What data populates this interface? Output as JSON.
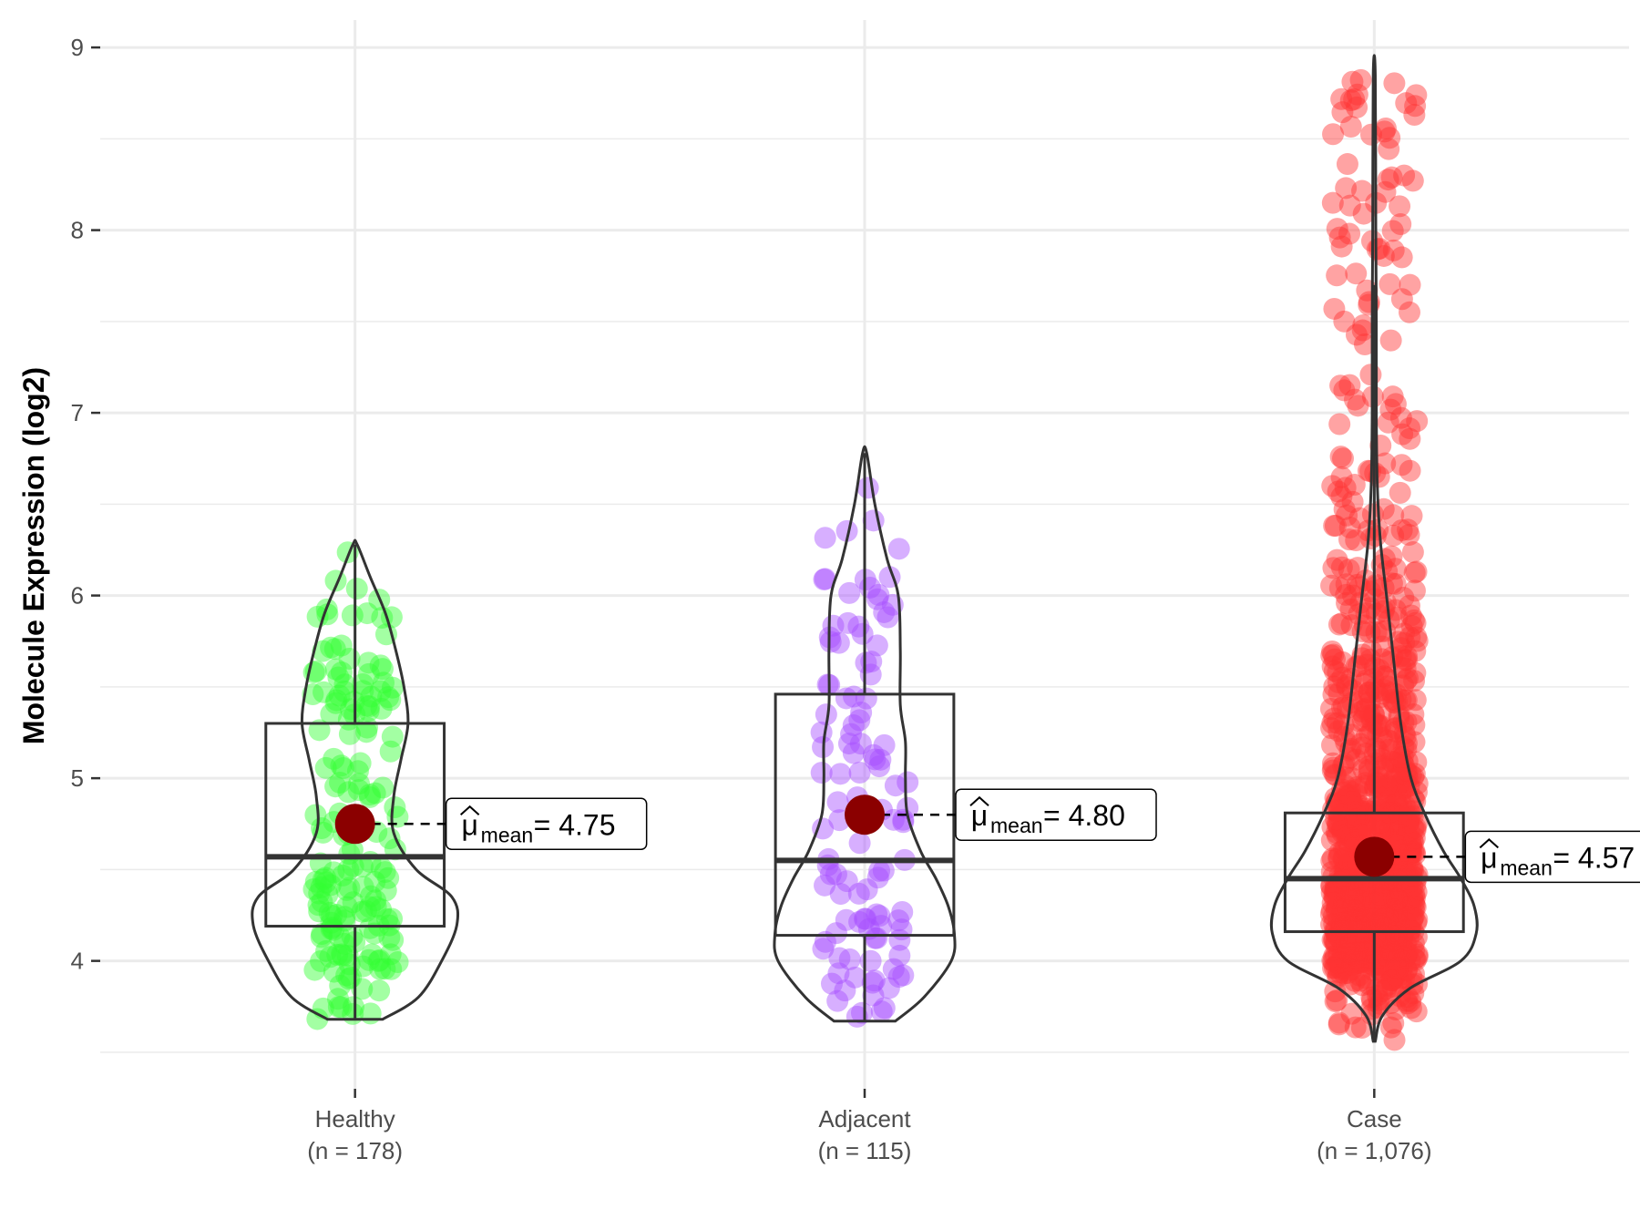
{
  "chart_data": {
    "type": "violin",
    "title": "",
    "xlabel": "",
    "ylabel": "Molecule Expression (log2)",
    "ylim": [
      3.3,
      9.15
    ],
    "yticks": [
      4,
      5,
      6,
      7,
      8,
      9
    ],
    "grid": true,
    "mean_label_template": "= ",
    "mean_symbol": "μ",
    "mean_subscript": "mean",
    "colors": {
      "grid": "#ebebeb",
      "outline": "#333333",
      "mean_point": "#8b0000",
      "axis_text": "#4d4d4d"
    },
    "groups": [
      {
        "name": "Healthy",
        "n_label": "(n = 178)",
        "n": 178,
        "color": "#33ff33",
        "mean": 4.75,
        "mean_label": "4.75",
        "box": {
          "q1": 4.19,
          "median": 4.57,
          "q3": 5.3,
          "whisker_low": 3.68,
          "whisker_high": 6.28
        },
        "violin": {
          "min": 3.68,
          "max": 6.28,
          "ys": [
            3.68,
            3.8,
            4.0,
            4.2,
            4.35,
            4.5,
            4.7,
            4.9,
            5.1,
            5.3,
            5.5,
            5.7,
            5.9,
            6.1,
            6.28
          ],
          "widths": [
            0.27,
            0.62,
            0.85,
            1.0,
            0.95,
            0.6,
            0.38,
            0.38,
            0.45,
            0.52,
            0.48,
            0.4,
            0.3,
            0.15,
            0.02
          ]
        },
        "range": [
          3.68,
          6.3
        ]
      },
      {
        "name": "Adjacent",
        "n_label": "(n = 115)",
        "n": 115,
        "color": "#a64dff",
        "mean": 4.8,
        "mean_label": "4.80",
        "box": {
          "q1": 4.14,
          "median": 4.55,
          "q3": 5.46,
          "whisker_low": 3.67,
          "whisker_high": 6.78
        },
        "violin": {
          "min": 3.67,
          "max": 6.78,
          "ys": [
            3.67,
            3.8,
            4.0,
            4.15,
            4.3,
            4.45,
            4.6,
            4.8,
            5.0,
            5.2,
            5.4,
            5.7,
            6.0,
            6.2,
            6.5,
            6.78
          ],
          "widths": [
            0.3,
            0.58,
            0.85,
            0.88,
            0.82,
            0.7,
            0.55,
            0.42,
            0.4,
            0.4,
            0.35,
            0.35,
            0.33,
            0.22,
            0.1,
            0.02
          ]
        },
        "range": [
          3.67,
          6.78
        ]
      },
      {
        "name": "Case",
        "n_label": "(n = 1,076)",
        "n": 1076,
        "color": "#ff3333",
        "mean": 4.57,
        "mean_label": "4.57",
        "box": {
          "q1": 4.16,
          "median": 4.45,
          "q3": 4.81,
          "whisker_low": 3.56,
          "whisker_high": 7.7
        },
        "violin": {
          "min": 3.56,
          "max": 8.85,
          "ys": [
            3.56,
            3.7,
            3.85,
            4.0,
            4.15,
            4.3,
            4.45,
            4.6,
            4.8,
            5.0,
            5.3,
            5.7,
            6.0,
            6.3,
            6.6,
            7.0,
            7.5,
            8.0,
            8.85
          ],
          "widths": [
            0.01,
            0.08,
            0.35,
            0.85,
            1.0,
            0.98,
            0.85,
            0.68,
            0.5,
            0.36,
            0.26,
            0.18,
            0.12,
            0.06,
            0.03,
            0.02,
            0.02,
            0.015,
            0.01
          ]
        },
        "range": [
          3.56,
          8.86
        ]
      }
    ]
  }
}
